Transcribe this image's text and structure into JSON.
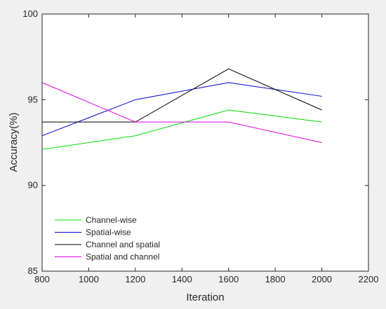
{
  "chart_data": {
    "type": "line",
    "xlabel": "Iteration",
    "ylabel": "Accuracy(%)",
    "xlim": [
      800,
      2200
    ],
    "ylim": [
      85,
      100
    ],
    "xticks": [
      800,
      1000,
      1200,
      1400,
      1600,
      1800,
      2000,
      2200
    ],
    "yticks": [
      85,
      90,
      95,
      100
    ],
    "x": [
      800,
      1200,
      1600,
      2000
    ],
    "grid": false,
    "legend_position": "bottom-left",
    "series": [
      {
        "name": "Channel-wise",
        "color": "#00dd00",
        "values": [
          92.1,
          92.9,
          94.4,
          93.7
        ]
      },
      {
        "name": "Spatial-wise",
        "color": "#0000cc",
        "values": [
          92.9,
          95.0,
          96.0,
          95.2
        ]
      },
      {
        "name": "Channel and spatial",
        "color": "#000000",
        "values": [
          93.7,
          93.7,
          96.8,
          94.4
        ]
      },
      {
        "name": "Spatial and channel",
        "color": "#dd00dd",
        "values": [
          96.0,
          93.7,
          93.7,
          92.5
        ]
      }
    ]
  }
}
